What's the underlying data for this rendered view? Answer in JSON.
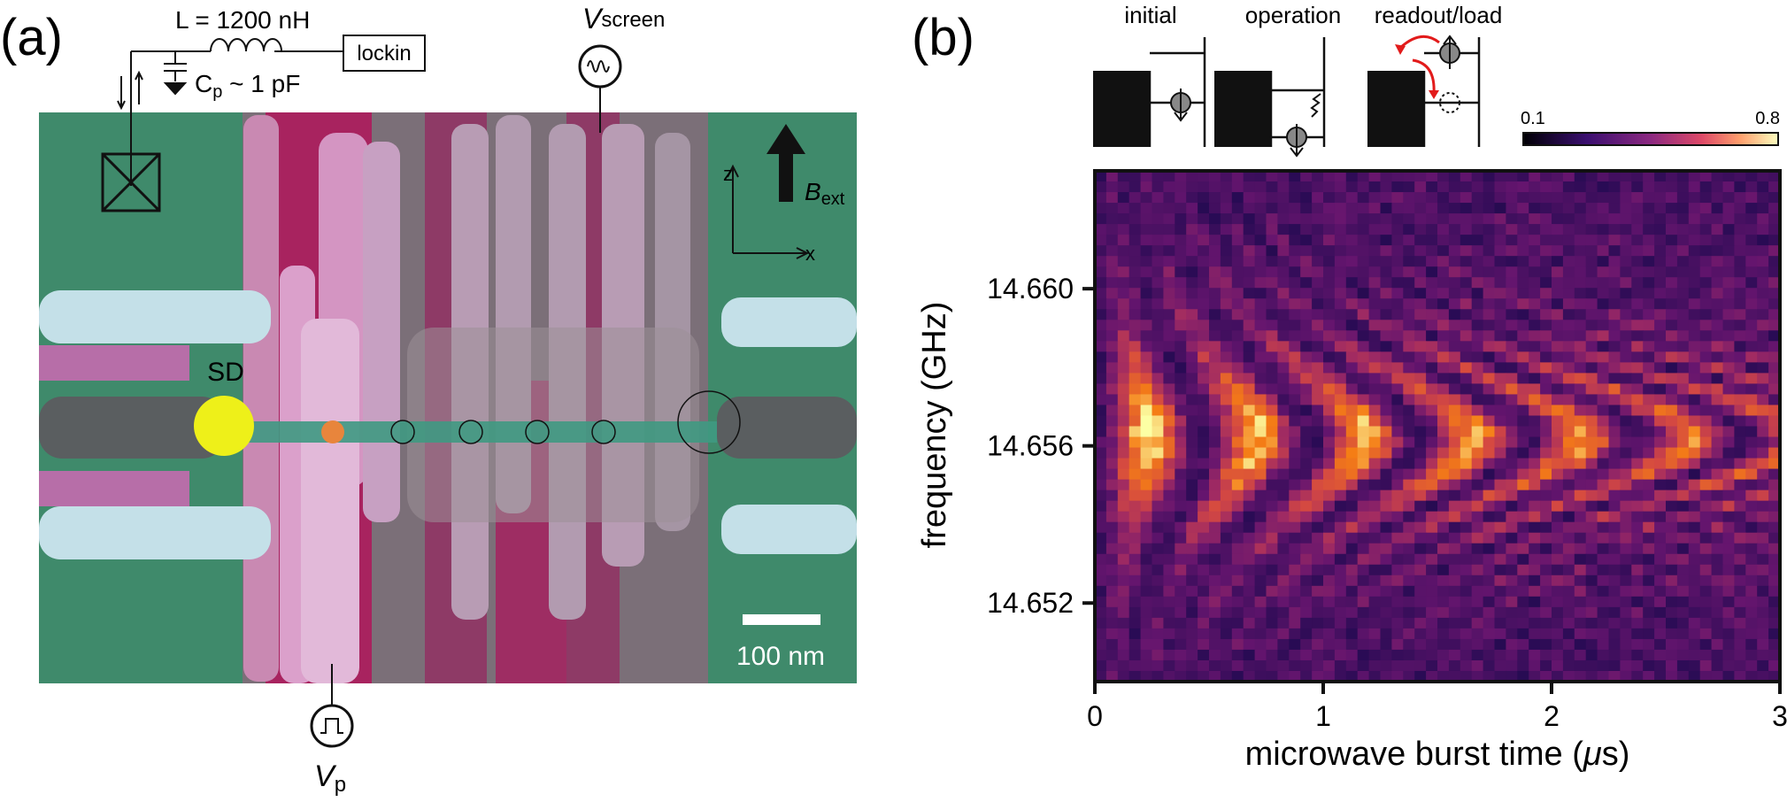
{
  "panel_a": {
    "label": "(a)",
    "inductor_label": "L = 1200 nH",
    "cap_label_main": "C",
    "cap_label_sub": "p",
    "cap_label_rest": " ~ 1 pF",
    "lockin_label": "lockin",
    "vscreen_main": "V",
    "vscreen_sub": "screen",
    "vp_main": "V",
    "vp_sub": "p",
    "sd_label": "SD",
    "axis_z": "z",
    "axis_x": "x",
    "bext_main": "B",
    "bext_sub": "ext",
    "scalebar_label": "100 nm",
    "colors": {
      "green": "#3d8c6a",
      "magenta": "#b3226b",
      "pink": "#d98cbf",
      "lightblue": "#cfe6ec",
      "yellow": "#eef019",
      "orange": "#e8853c"
    }
  },
  "panel_b": {
    "label": "(b)",
    "insets": [
      "initial",
      "operation",
      "readout/load"
    ],
    "colorbar_min": "0.1",
    "colorbar_max": "0.8"
  },
  "chart_data": {
    "type": "heatmap",
    "xlabel_main": "microwave burst time (",
    "xlabel_mu": "μ",
    "xlabel_end": "s)",
    "ylabel": "frequency (GHz)",
    "xlim": [
      0,
      3
    ],
    "ylim": [
      14.65,
      14.663
    ],
    "xticks": [
      0,
      1,
      2,
      3
    ],
    "xtick_labels": [
      "0",
      "1",
      "2",
      "3"
    ],
    "yticks": [
      14.652,
      14.656,
      14.66
    ],
    "ytick_labels": [
      "14.652",
      "14.656",
      "14.660"
    ],
    "colorscale": "inferno/magma",
    "zlim": [
      0.1,
      0.8
    ],
    "resonance_frequency_GHz": 14.6562,
    "rabi_frequency_MHz": 2.1
  }
}
